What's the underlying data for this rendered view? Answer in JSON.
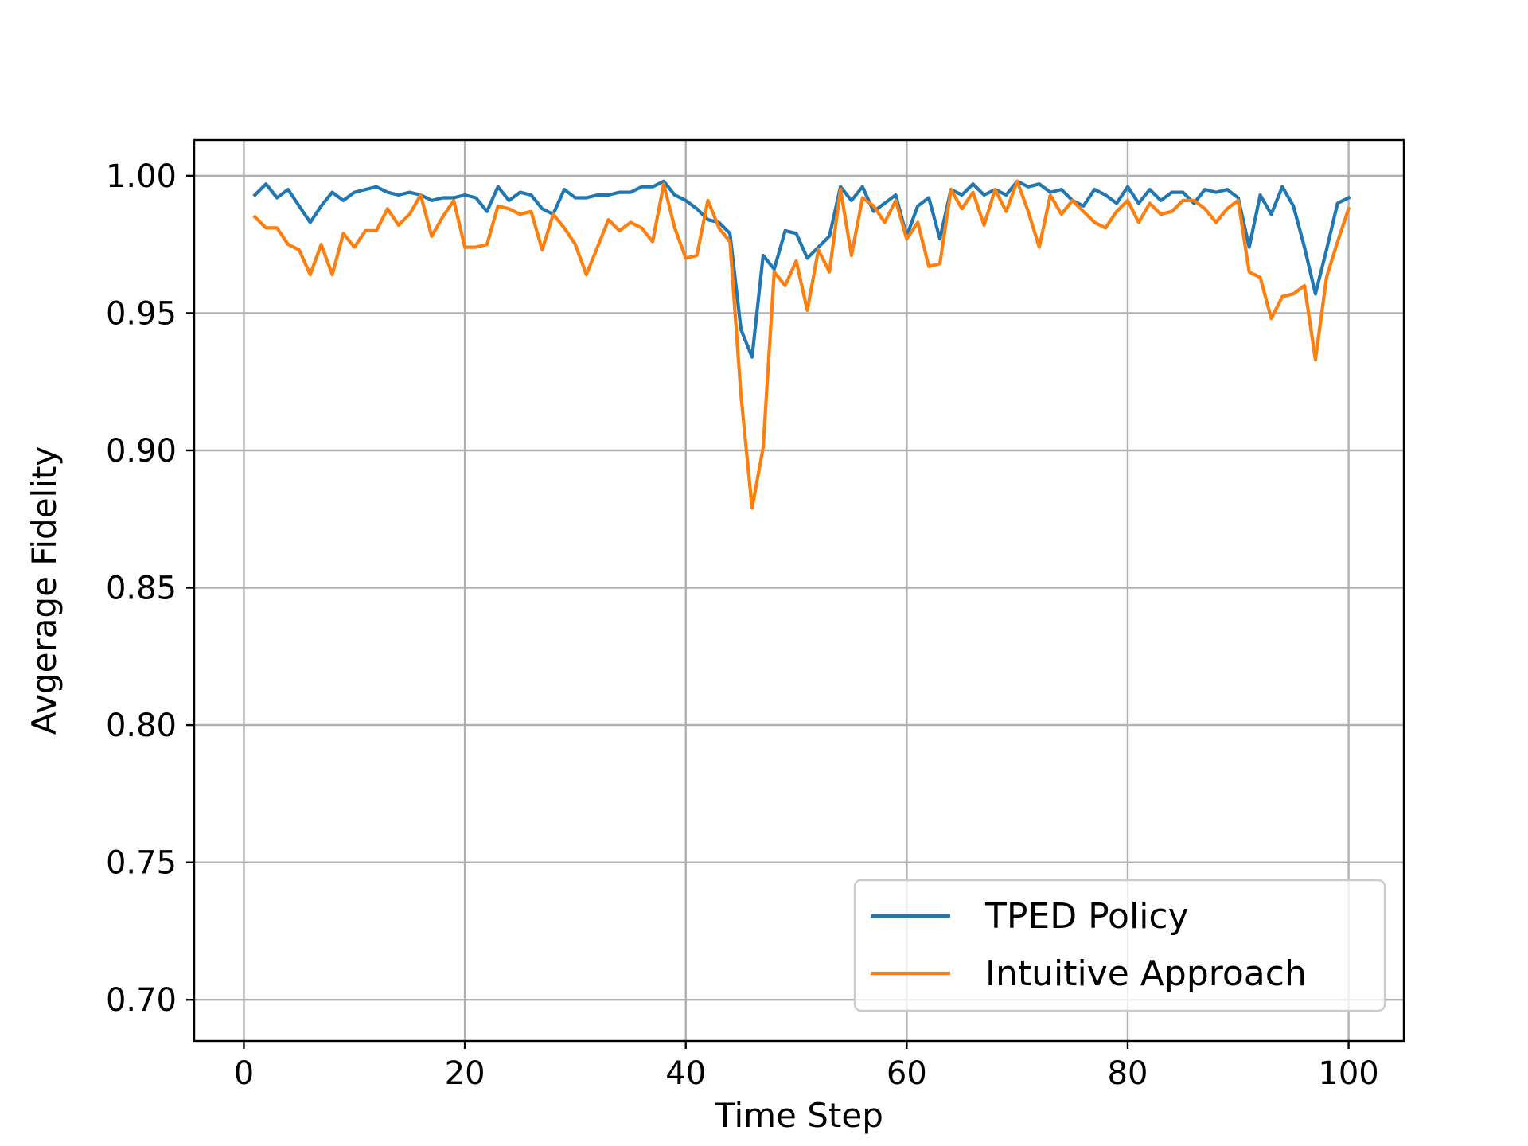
{
  "chart_data": {
    "type": "line",
    "title": "",
    "xlabel": "Time Step",
    "ylabel": "Avgerage Fidelity",
    "xlim": [
      -4.5,
      105
    ],
    "ylim": [
      0.685,
      1.013
    ],
    "xticks": [
      0,
      20,
      40,
      60,
      80,
      100
    ],
    "yticks": [
      0.7,
      0.75,
      0.8,
      0.85,
      0.9,
      0.95,
      1.0
    ],
    "xtick_labels": [
      "0",
      "20",
      "40",
      "60",
      "80",
      "100"
    ],
    "ytick_labels": [
      "0.70",
      "0.75",
      "0.80",
      "0.85",
      "0.90",
      "0.95",
      "1.00"
    ],
    "grid": true,
    "legend_position": "lower-right",
    "x": [
      1,
      2,
      3,
      4,
      5,
      6,
      7,
      8,
      9,
      10,
      11,
      12,
      13,
      14,
      15,
      16,
      17,
      18,
      19,
      20,
      21,
      22,
      23,
      24,
      25,
      26,
      27,
      28,
      29,
      30,
      31,
      32,
      33,
      34,
      35,
      36,
      37,
      38,
      39,
      40,
      41,
      42,
      43,
      44,
      45,
      46,
      47,
      48,
      49,
      50,
      51,
      52,
      53,
      54,
      55,
      56,
      57,
      58,
      59,
      60,
      61,
      62,
      63,
      64,
      65,
      66,
      67,
      68,
      69,
      70,
      71,
      72,
      73,
      74,
      75,
      76,
      77,
      78,
      79,
      80,
      81,
      82,
      83,
      84,
      85,
      86,
      87,
      88,
      89,
      90,
      91,
      92,
      93,
      94,
      95,
      96,
      97,
      98,
      99,
      100
    ],
    "series": [
      {
        "name": "TPED Policy",
        "color": "#1f77b4",
        "values": [
          0.993,
          0.997,
          0.992,
          0.995,
          0.989,
          0.983,
          0.989,
          0.994,
          0.991,
          0.994,
          0.995,
          0.996,
          0.994,
          0.993,
          0.994,
          0.993,
          0.991,
          0.992,
          0.992,
          0.993,
          0.992,
          0.987,
          0.996,
          0.991,
          0.994,
          0.993,
          0.988,
          0.986,
          0.995,
          0.992,
          0.992,
          0.993,
          0.993,
          0.994,
          0.994,
          0.996,
          0.996,
          0.998,
          0.993,
          0.991,
          0.988,
          0.984,
          0.983,
          0.979,
          0.944,
          0.934,
          0.971,
          0.966,
          0.98,
          0.979,
          0.97,
          0.974,
          0.978,
          0.996,
          0.991,
          0.996,
          0.987,
          0.99,
          0.993,
          0.978,
          0.989,
          0.992,
          0.977,
          0.995,
          0.993,
          0.997,
          0.993,
          0.995,
          0.993,
          0.998,
          0.996,
          0.997,
          0.994,
          0.995,
          0.991,
          0.989,
          0.995,
          0.993,
          0.99,
          0.996,
          0.99,
          0.995,
          0.991,
          0.994,
          0.994,
          0.99,
          0.995,
          0.994,
          0.995,
          0.992,
          0.974,
          0.993,
          0.986,
          0.996,
          0.989,
          0.974,
          0.957,
          0.973,
          0.99,
          0.992
        ]
      },
      {
        "name": "Intuitive Approach",
        "color": "#ff7f0e",
        "values": [
          0.985,
          0.981,
          0.981,
          0.975,
          0.973,
          0.964,
          0.975,
          0.964,
          0.979,
          0.974,
          0.98,
          0.98,
          0.988,
          0.982,
          0.986,
          0.993,
          0.978,
          0.985,
          0.991,
          0.974,
          0.974,
          0.975,
          0.989,
          0.988,
          0.986,
          0.987,
          0.973,
          0.986,
          0.981,
          0.975,
          0.964,
          0.974,
          0.984,
          0.98,
          0.983,
          0.981,
          0.976,
          0.997,
          0.981,
          0.97,
          0.971,
          0.991,
          0.981,
          0.976,
          0.92,
          0.879,
          0.901,
          0.965,
          0.96,
          0.969,
          0.951,
          0.973,
          0.965,
          0.995,
          0.971,
          0.992,
          0.989,
          0.983,
          0.991,
          0.977,
          0.983,
          0.967,
          0.968,
          0.995,
          0.988,
          0.994,
          0.982,
          0.995,
          0.987,
          0.998,
          0.987,
          0.974,
          0.993,
          0.986,
          0.991,
          0.987,
          0.983,
          0.981,
          0.987,
          0.991,
          0.983,
          0.99,
          0.986,
          0.987,
          0.991,
          0.991,
          0.988,
          0.983,
          0.988,
          0.991,
          0.965,
          0.963,
          0.948,
          0.956,
          0.957,
          0.96,
          0.933,
          0.963,
          0.976,
          0.988
        ]
      }
    ]
  }
}
